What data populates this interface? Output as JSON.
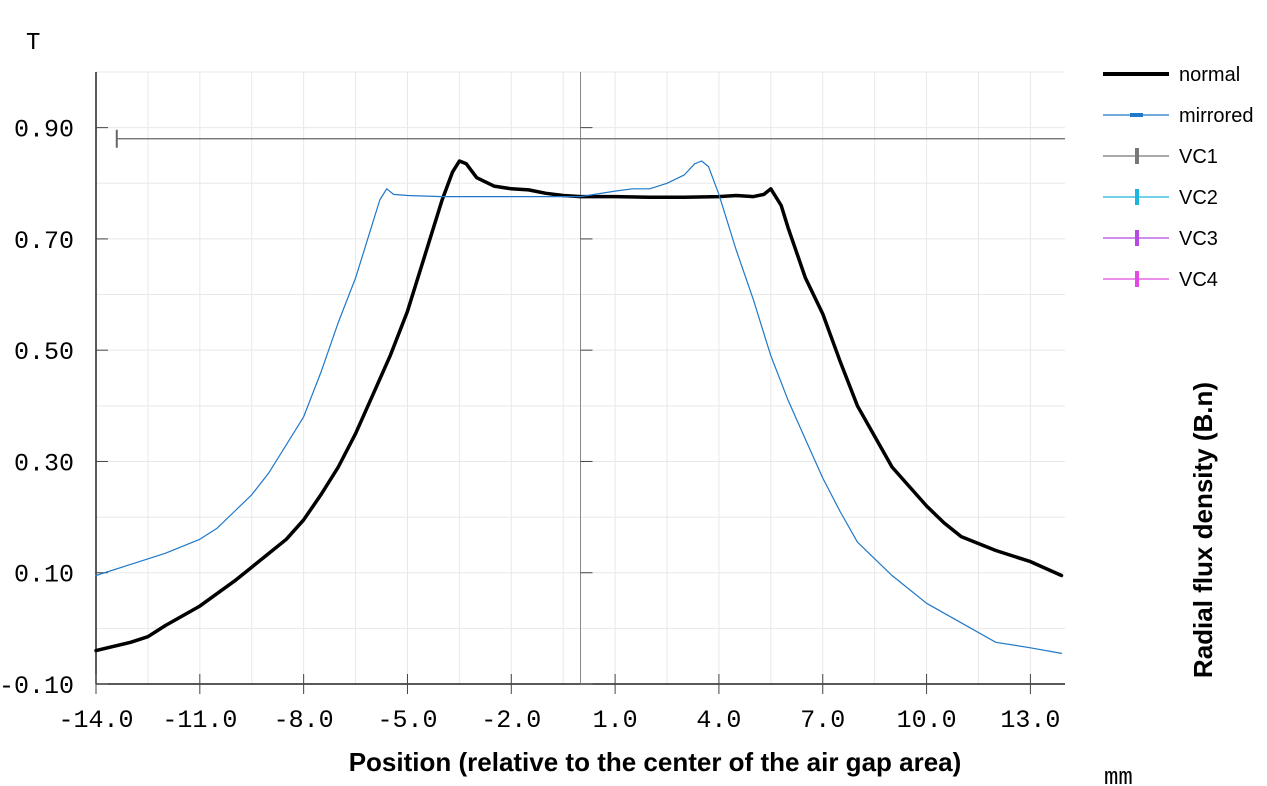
{
  "chart_data": {
    "type": "line",
    "xlabel": "Position (relative to the center of the air gap area)",
    "ylabel": "Radial flux density (B.n)",
    "x_unit": "mm",
    "y_unit": "T",
    "xlim": [
      -14.0,
      14.0
    ],
    "ylim": [
      -0.1,
      1.0
    ],
    "x_ticks": [
      "-14.0",
      "-11.0",
      "-8.0",
      "-5.0",
      "-2.0",
      "1.0",
      "4.0",
      "7.0",
      "10.0",
      "13.0"
    ],
    "y_ticks": [
      "-0.10",
      "0.10",
      "0.30",
      "0.50",
      "0.70",
      "0.90"
    ],
    "grid": true,
    "legend_position": "right",
    "cursor": {
      "x": -13.4,
      "y": 0.88
    },
    "series": [
      {
        "name": "normal",
        "color": "#000000",
        "x": [
          -14.0,
          -13.0,
          -12.5,
          -12.0,
          -11.0,
          -10.0,
          -9.5,
          -9.0,
          -8.5,
          -8.0,
          -7.5,
          -7.0,
          -6.5,
          -6.0,
          -5.5,
          -5.0,
          -4.5,
          -4.0,
          -3.7,
          -3.5,
          -3.3,
          -3.0,
          -2.5,
          -2.0,
          -1.5,
          -1.0,
          -0.5,
          0.0,
          1.0,
          2.0,
          3.0,
          4.0,
          4.5,
          5.0,
          5.3,
          5.5,
          5.8,
          6.0,
          6.5,
          7.0,
          7.5,
          8.0,
          8.5,
          9.0,
          9.5,
          10.0,
          10.5,
          11.0,
          12.0,
          13.0,
          13.9
        ],
        "y": [
          -0.04,
          -0.025,
          -0.015,
          0.005,
          0.04,
          0.085,
          0.11,
          0.135,
          0.16,
          0.195,
          0.24,
          0.29,
          0.35,
          0.42,
          0.49,
          0.57,
          0.67,
          0.77,
          0.82,
          0.84,
          0.835,
          0.81,
          0.795,
          0.79,
          0.788,
          0.782,
          0.778,
          0.776,
          0.776,
          0.775,
          0.775,
          0.776,
          0.778,
          0.776,
          0.78,
          0.79,
          0.76,
          0.72,
          0.63,
          0.565,
          0.48,
          0.4,
          0.345,
          0.29,
          0.255,
          0.22,
          0.19,
          0.165,
          0.14,
          0.12,
          0.095
        ]
      },
      {
        "name": "mirrored",
        "color": "#1f78c8",
        "x": [
          -14.0,
          -13.0,
          -12.0,
          -11.0,
          -10.5,
          -10.0,
          -9.5,
          -9.0,
          -8.5,
          -8.0,
          -7.5,
          -7.0,
          -6.5,
          -6.0,
          -5.8,
          -5.6,
          -5.4,
          -5.0,
          -4.0,
          -3.0,
          -2.0,
          -1.0,
          0.0,
          1.0,
          1.5,
          2.0,
          2.5,
          3.0,
          3.3,
          3.5,
          3.7,
          4.0,
          4.5,
          5.0,
          5.5,
          6.0,
          6.5,
          7.0,
          7.5,
          8.0,
          8.5,
          9.0,
          9.5,
          10.0,
          11.0,
          12.0,
          13.0,
          13.9
        ],
        "y": [
          0.095,
          0.115,
          0.135,
          0.16,
          0.18,
          0.21,
          0.24,
          0.28,
          0.33,
          0.38,
          0.46,
          0.55,
          0.63,
          0.73,
          0.77,
          0.79,
          0.78,
          0.778,
          0.776,
          0.776,
          0.776,
          0.776,
          0.776,
          0.786,
          0.79,
          0.79,
          0.8,
          0.815,
          0.835,
          0.84,
          0.83,
          0.78,
          0.68,
          0.59,
          0.49,
          0.41,
          0.34,
          0.27,
          0.21,
          0.155,
          0.125,
          0.095,
          0.07,
          0.045,
          0.01,
          -0.025,
          -0.035,
          -0.045
        ]
      },
      {
        "name": "VC1",
        "color": "#777777",
        "x": [],
        "y": []
      },
      {
        "name": "VC2",
        "color": "#1fb4dc",
        "x": [],
        "y": []
      },
      {
        "name": "VC3",
        "color": "#b44be1",
        "x": [],
        "y": []
      },
      {
        "name": "VC4",
        "color": "#e14be1",
        "x": [],
        "y": []
      }
    ]
  }
}
